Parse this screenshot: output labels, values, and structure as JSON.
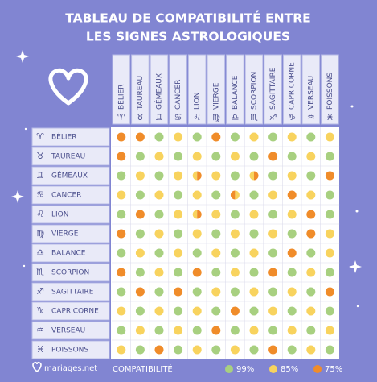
{
  "title_lines": [
    "TABLEAU DE COMPATIBILITÉ ENTRE",
    "LES SIGNES ASTROLOGIQUES"
  ],
  "columns": [
    {
      "label": "BÉLIER",
      "symbol": "♈"
    },
    {
      "label": "TAUREAU",
      "symbol": "♉"
    },
    {
      "label": "GÉMEAUX",
      "symbol": "♊"
    },
    {
      "label": "CANCER",
      "symbol": "♋"
    },
    {
      "label": "LION",
      "symbol": "♌"
    },
    {
      "label": "VIERGE",
      "symbol": "♍"
    },
    {
      "label": "BALANCE",
      "symbol": "♎"
    },
    {
      "label": "SCORPION",
      "symbol": "♏"
    },
    {
      "label": "SAGITTAIRE",
      "symbol": "♐"
    },
    {
      "label": "CAPRICORNE",
      "symbol": "♑"
    },
    {
      "label": "VERSEAU",
      "symbol": "♒"
    },
    {
      "label": "POISSONS",
      "symbol": "♓"
    }
  ],
  "rows": [
    {
      "label": "BÉLIER",
      "symbol": "♈",
      "cells": [
        75,
        75,
        99,
        85,
        99,
        75,
        99,
        85,
        99,
        85,
        99,
        85
      ]
    },
    {
      "label": "TAUREAU",
      "symbol": "♉",
      "cells": [
        75,
        99,
        85,
        99,
        85,
        99,
        85,
        99,
        75,
        99,
        85,
        99
      ]
    },
    {
      "label": "GÉMEAUX",
      "symbol": "♊",
      "cells": [
        99,
        85,
        99,
        85,
        [
          85,
          75
        ],
        85,
        99,
        [
          85,
          75
        ],
        99,
        85,
        99,
        75
      ]
    },
    {
      "label": "CANCER",
      "symbol": "♋",
      "cells": [
        85,
        99,
        85,
        99,
        85,
        99,
        [
          75,
          85
        ],
        99,
        85,
        75,
        85,
        99
      ]
    },
    {
      "label": "LION",
      "symbol": "♌",
      "cells": [
        99,
        75,
        99,
        85,
        [
          85,
          75
        ],
        85,
        99,
        85,
        99,
        85,
        75,
        99
      ]
    },
    {
      "label": "VIERGE",
      "symbol": "♍",
      "cells": [
        75,
        99,
        85,
        99,
        85,
        99,
        85,
        99,
        85,
        99,
        75,
        85
      ]
    },
    {
      "label": "BALANCE",
      "symbol": "♎",
      "cells": [
        99,
        85,
        99,
        85,
        99,
        85,
        99,
        85,
        99,
        75,
        99,
        85
      ]
    },
    {
      "label": "SCORPION",
      "symbol": "♏",
      "cells": [
        75,
        99,
        85,
        99,
        75,
        99,
        85,
        99,
        75,
        99,
        85,
        99
      ]
    },
    {
      "label": "SAGITTAIRE",
      "symbol": "♐",
      "cells": [
        99,
        75,
        99,
        75,
        99,
        85,
        99,
        85,
        99,
        85,
        99,
        75
      ]
    },
    {
      "label": "CAPRICORNE",
      "symbol": "♑",
      "cells": [
        85,
        99,
        85,
        99,
        85,
        99,
        75,
        99,
        85,
        99,
        85,
        99
      ]
    },
    {
      "label": "VERSEAU",
      "symbol": "♒",
      "cells": [
        99,
        85,
        99,
        85,
        99,
        75,
        99,
        85,
        99,
        85,
        99,
        85
      ]
    },
    {
      "label": "POISSONS",
      "symbol": "♓",
      "cells": [
        85,
        99,
        75,
        99,
        85,
        99,
        85,
        99,
        75,
        99,
        85,
        99
      ]
    }
  ],
  "footer": {
    "brand": "mariages.net",
    "legend_title": "COMPATIBILITÉ"
  },
  "legend": [
    {
      "label": "99%",
      "value": 99,
      "color": "#a8d080"
    },
    {
      "label": "85%",
      "value": 85,
      "color": "#f8d35e"
    },
    {
      "label": "75%",
      "value": 75,
      "color": "#f08c2a"
    }
  ]
}
